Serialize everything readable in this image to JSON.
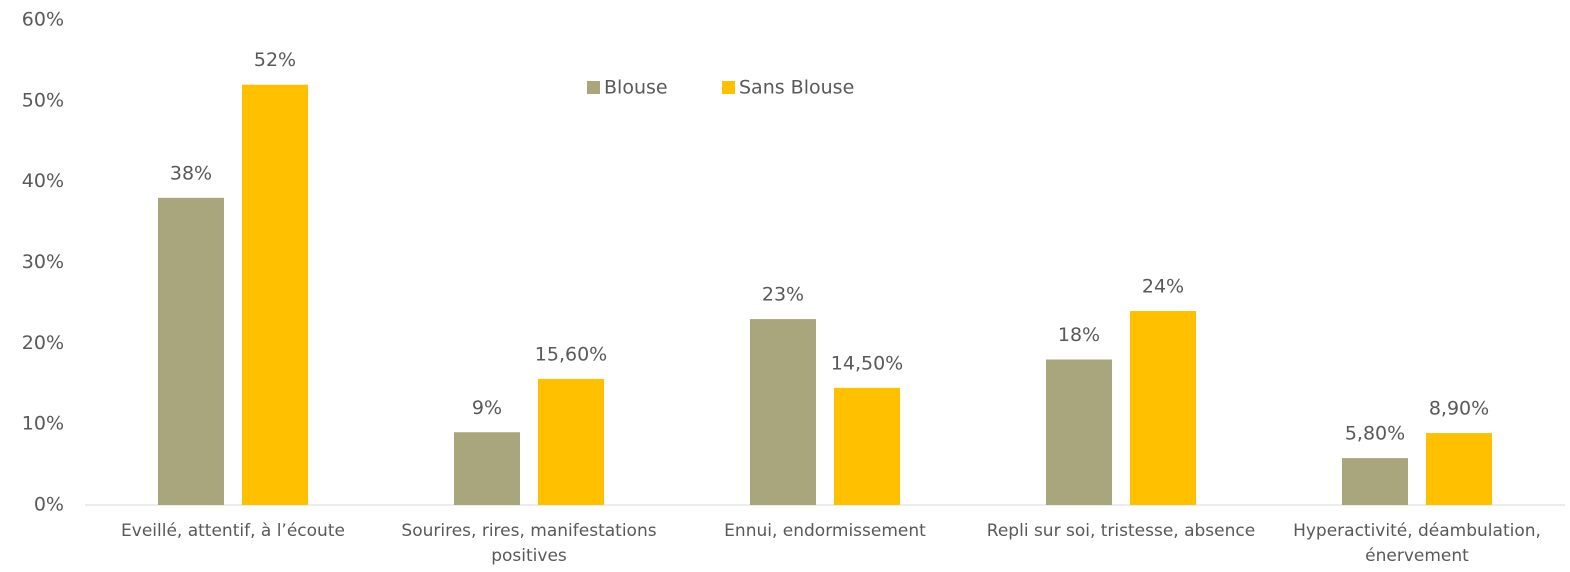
{
  "chart_data": {
    "type": "bar",
    "categories": [
      "Eveillé, attentif, à l’écoute",
      "Sourires, rires, manifestations positives",
      "Ennui, endormissement",
      "Repli sur soi, tristesse, absence",
      "Hyperactivité, déambulation, énervement"
    ],
    "series": [
      {
        "name": "Blouse",
        "color": "#a9a57c",
        "values": [
          38,
          9,
          23,
          18,
          5.8
        ],
        "value_labels": [
          "38%",
          "9%",
          "23%",
          "18%",
          "5,80%"
        ]
      },
      {
        "name": "Sans Blouse",
        "color": "#ffc000",
        "values": [
          52,
          15.6,
          14.5,
          24,
          8.9
        ],
        "value_labels": [
          "52%",
          "15,60%",
          "14,50%",
          "24%",
          "8,90%"
        ]
      }
    ],
    "ylim": [
      0,
      60
    ],
    "yticks": [
      {
        "value": 0,
        "label": "0%"
      },
      {
        "value": 10,
        "label": "10%"
      },
      {
        "value": 20,
        "label": "20%"
      },
      {
        "value": 30,
        "label": "30%"
      },
      {
        "value": 40,
        "label": "40%"
      },
      {
        "value": 50,
        "label": "50%"
      },
      {
        "value": 60,
        "label": "60%"
      }
    ],
    "grid": false,
    "legend": "top"
  }
}
